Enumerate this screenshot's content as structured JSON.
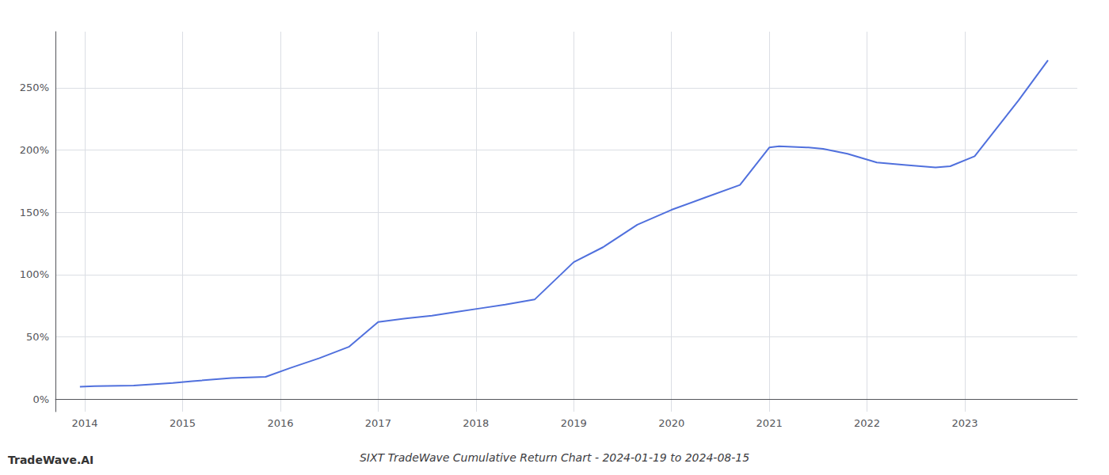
{
  "chart_data": {
    "type": "line",
    "title": "SIXT TradeWave Cumulative Return Chart - 2024-01-19 to 2024-08-15",
    "annotations": [
      "TradeWave.AI"
    ],
    "x": [
      2013.95,
      2014.1,
      2014.5,
      2014.9,
      2015.1,
      2015.5,
      2015.85,
      2016.1,
      2016.4,
      2016.7,
      2017.0,
      2017.3,
      2017.55,
      2017.8,
      2018.05,
      2018.3,
      2018.6,
      2019.0,
      2019.3,
      2019.65,
      2020.0,
      2020.35,
      2020.7,
      2021.0,
      2021.1,
      2021.4,
      2021.55,
      2021.8,
      2022.1,
      2022.4,
      2022.55,
      2022.7,
      2022.85,
      2023.1,
      2023.55,
      2023.85
    ],
    "values": [
      10,
      10.5,
      11,
      13,
      14.5,
      17,
      18,
      25,
      33,
      42,
      62,
      65,
      67,
      70,
      73,
      76,
      80,
      110,
      122,
      140,
      152,
      162,
      172,
      202,
      203,
      202,
      201,
      197,
      190,
      188,
      187,
      186,
      187,
      195,
      240,
      272
    ],
    "xlim": [
      2013.7,
      2024.15
    ],
    "xticks": [
      2014,
      2015,
      2016,
      2017,
      2018,
      2019,
      2020,
      2021,
      2022,
      2023
    ],
    "ylim": [
      -10,
      295
    ],
    "yticks": [
      {
        "value": 0,
        "label": "0%"
      },
      {
        "value": 50,
        "label": "50%"
      },
      {
        "value": 100,
        "label": "100%"
      },
      {
        "value": 150,
        "label": "150%"
      },
      {
        "value": 200,
        "label": "200%"
      },
      {
        "value": 250,
        "label": "250%"
      }
    ],
    "grid": true
  }
}
